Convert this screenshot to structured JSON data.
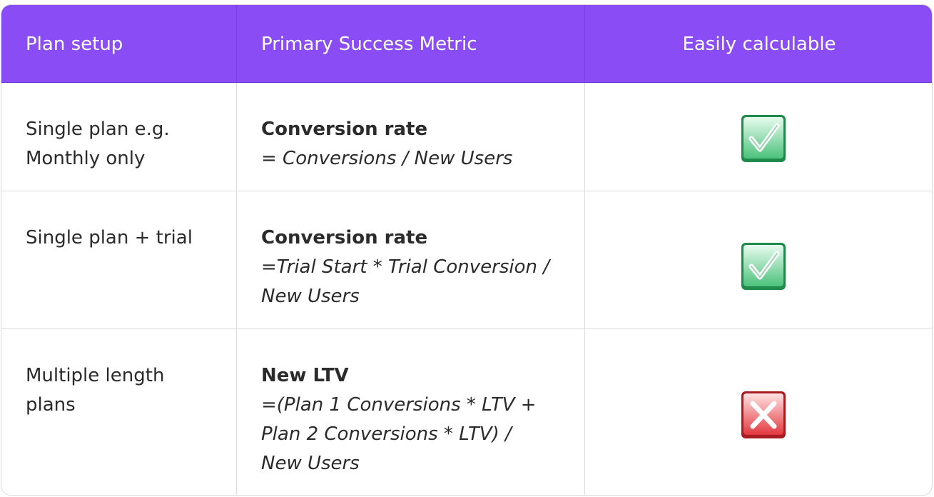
{
  "table": {
    "headers": [
      "Plan setup",
      "Primary Success Metric",
      "Easily calculable"
    ],
    "rows": [
      {
        "plan_setup": [
          "Single plan e.g.",
          "Monthly only"
        ],
        "metric_name": "Conversion rate",
        "formula": [
          "= Conversions / New Users"
        ],
        "calculable_icon": "check-mark-icon"
      },
      {
        "plan_setup": [
          "Single plan + trial"
        ],
        "metric_name": "Conversion rate",
        "formula": [
          "=Trial Start * Trial Conversion /",
          "New Users"
        ],
        "calculable_icon": "check-mark-icon"
      },
      {
        "plan_setup": [
          "Multiple length",
          "plans"
        ],
        "metric_name": "New LTV",
        "formula": [
          "=(Plan 1 Conversions * LTV  +",
          "Plan 2 Conversions * LTV)  /",
          "New Users"
        ],
        "calculable_icon": "cross-mark-icon"
      }
    ]
  },
  "colors": {
    "header_bg": "#8a4cf4",
    "header_text": "#ffffff",
    "check_green": "#2fb36a",
    "cross_red": "#e2383f"
  }
}
